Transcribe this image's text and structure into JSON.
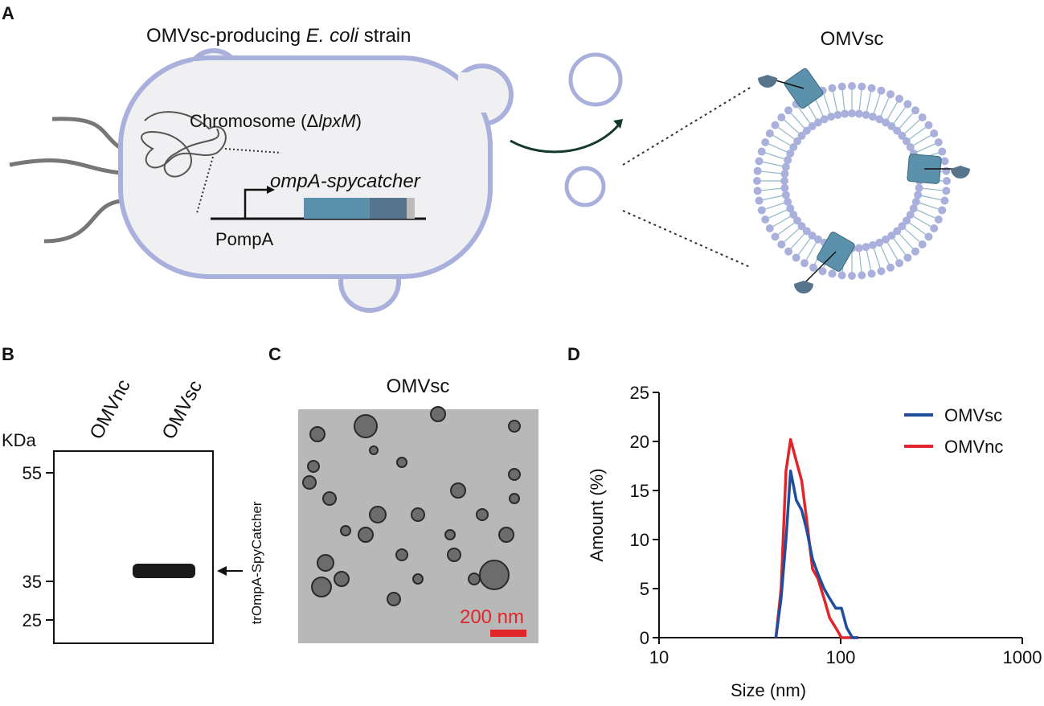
{
  "panel_a": {
    "letter": "A",
    "strain_title_parts": [
      "OMVsc-producing ",
      "E. coli",
      " strain"
    ],
    "chromosome_parts": [
      "Chromosome (Δ",
      "lpxM",
      ")"
    ],
    "gene": "ompA-spycatcher",
    "promoter": "PompA",
    "vesicle_title": "OMVsc"
  },
  "panel_b": {
    "letter": "B",
    "lanes": [
      "OMVnc",
      "OMVsc"
    ],
    "unit": "KDa",
    "markers": [
      "55",
      "35",
      "25"
    ],
    "band_label": "trOmpA-SpyCatcher"
  },
  "panel_c": {
    "letter": "C",
    "title": "OMVsc",
    "scale_bar": "200 nm"
  },
  "chart_data": {
    "type": "line",
    "panel_letter": "D",
    "xlabel": "Size (nm)",
    "ylabel": "Amount (%)",
    "xscale": "log",
    "xlim": [
      10,
      1000
    ],
    "xticks": [
      10,
      100,
      1000
    ],
    "ylim": [
      0,
      25
    ],
    "yticks": [
      0,
      5,
      10,
      15,
      20,
      25
    ],
    "legend": "upper right",
    "x": [
      44,
      47,
      50,
      53,
      57,
      61,
      65,
      70,
      75,
      81,
      87,
      94,
      101,
      108,
      116,
      125
    ],
    "series": [
      {
        "name": "OMVsc",
        "color": "#1f4e9c",
        "values": [
          0,
          4,
          10,
          17,
          14,
          13,
          11,
          8,
          6.5,
          5,
          4,
          3,
          3,
          1,
          0,
          0
        ]
      },
      {
        "name": "OMVnc",
        "color": "#e0262b",
        "values": [
          0,
          5,
          17,
          20.2,
          18,
          16,
          12,
          7,
          6,
          4,
          2,
          1,
          0,
          0,
          0,
          0
        ]
      }
    ]
  }
}
